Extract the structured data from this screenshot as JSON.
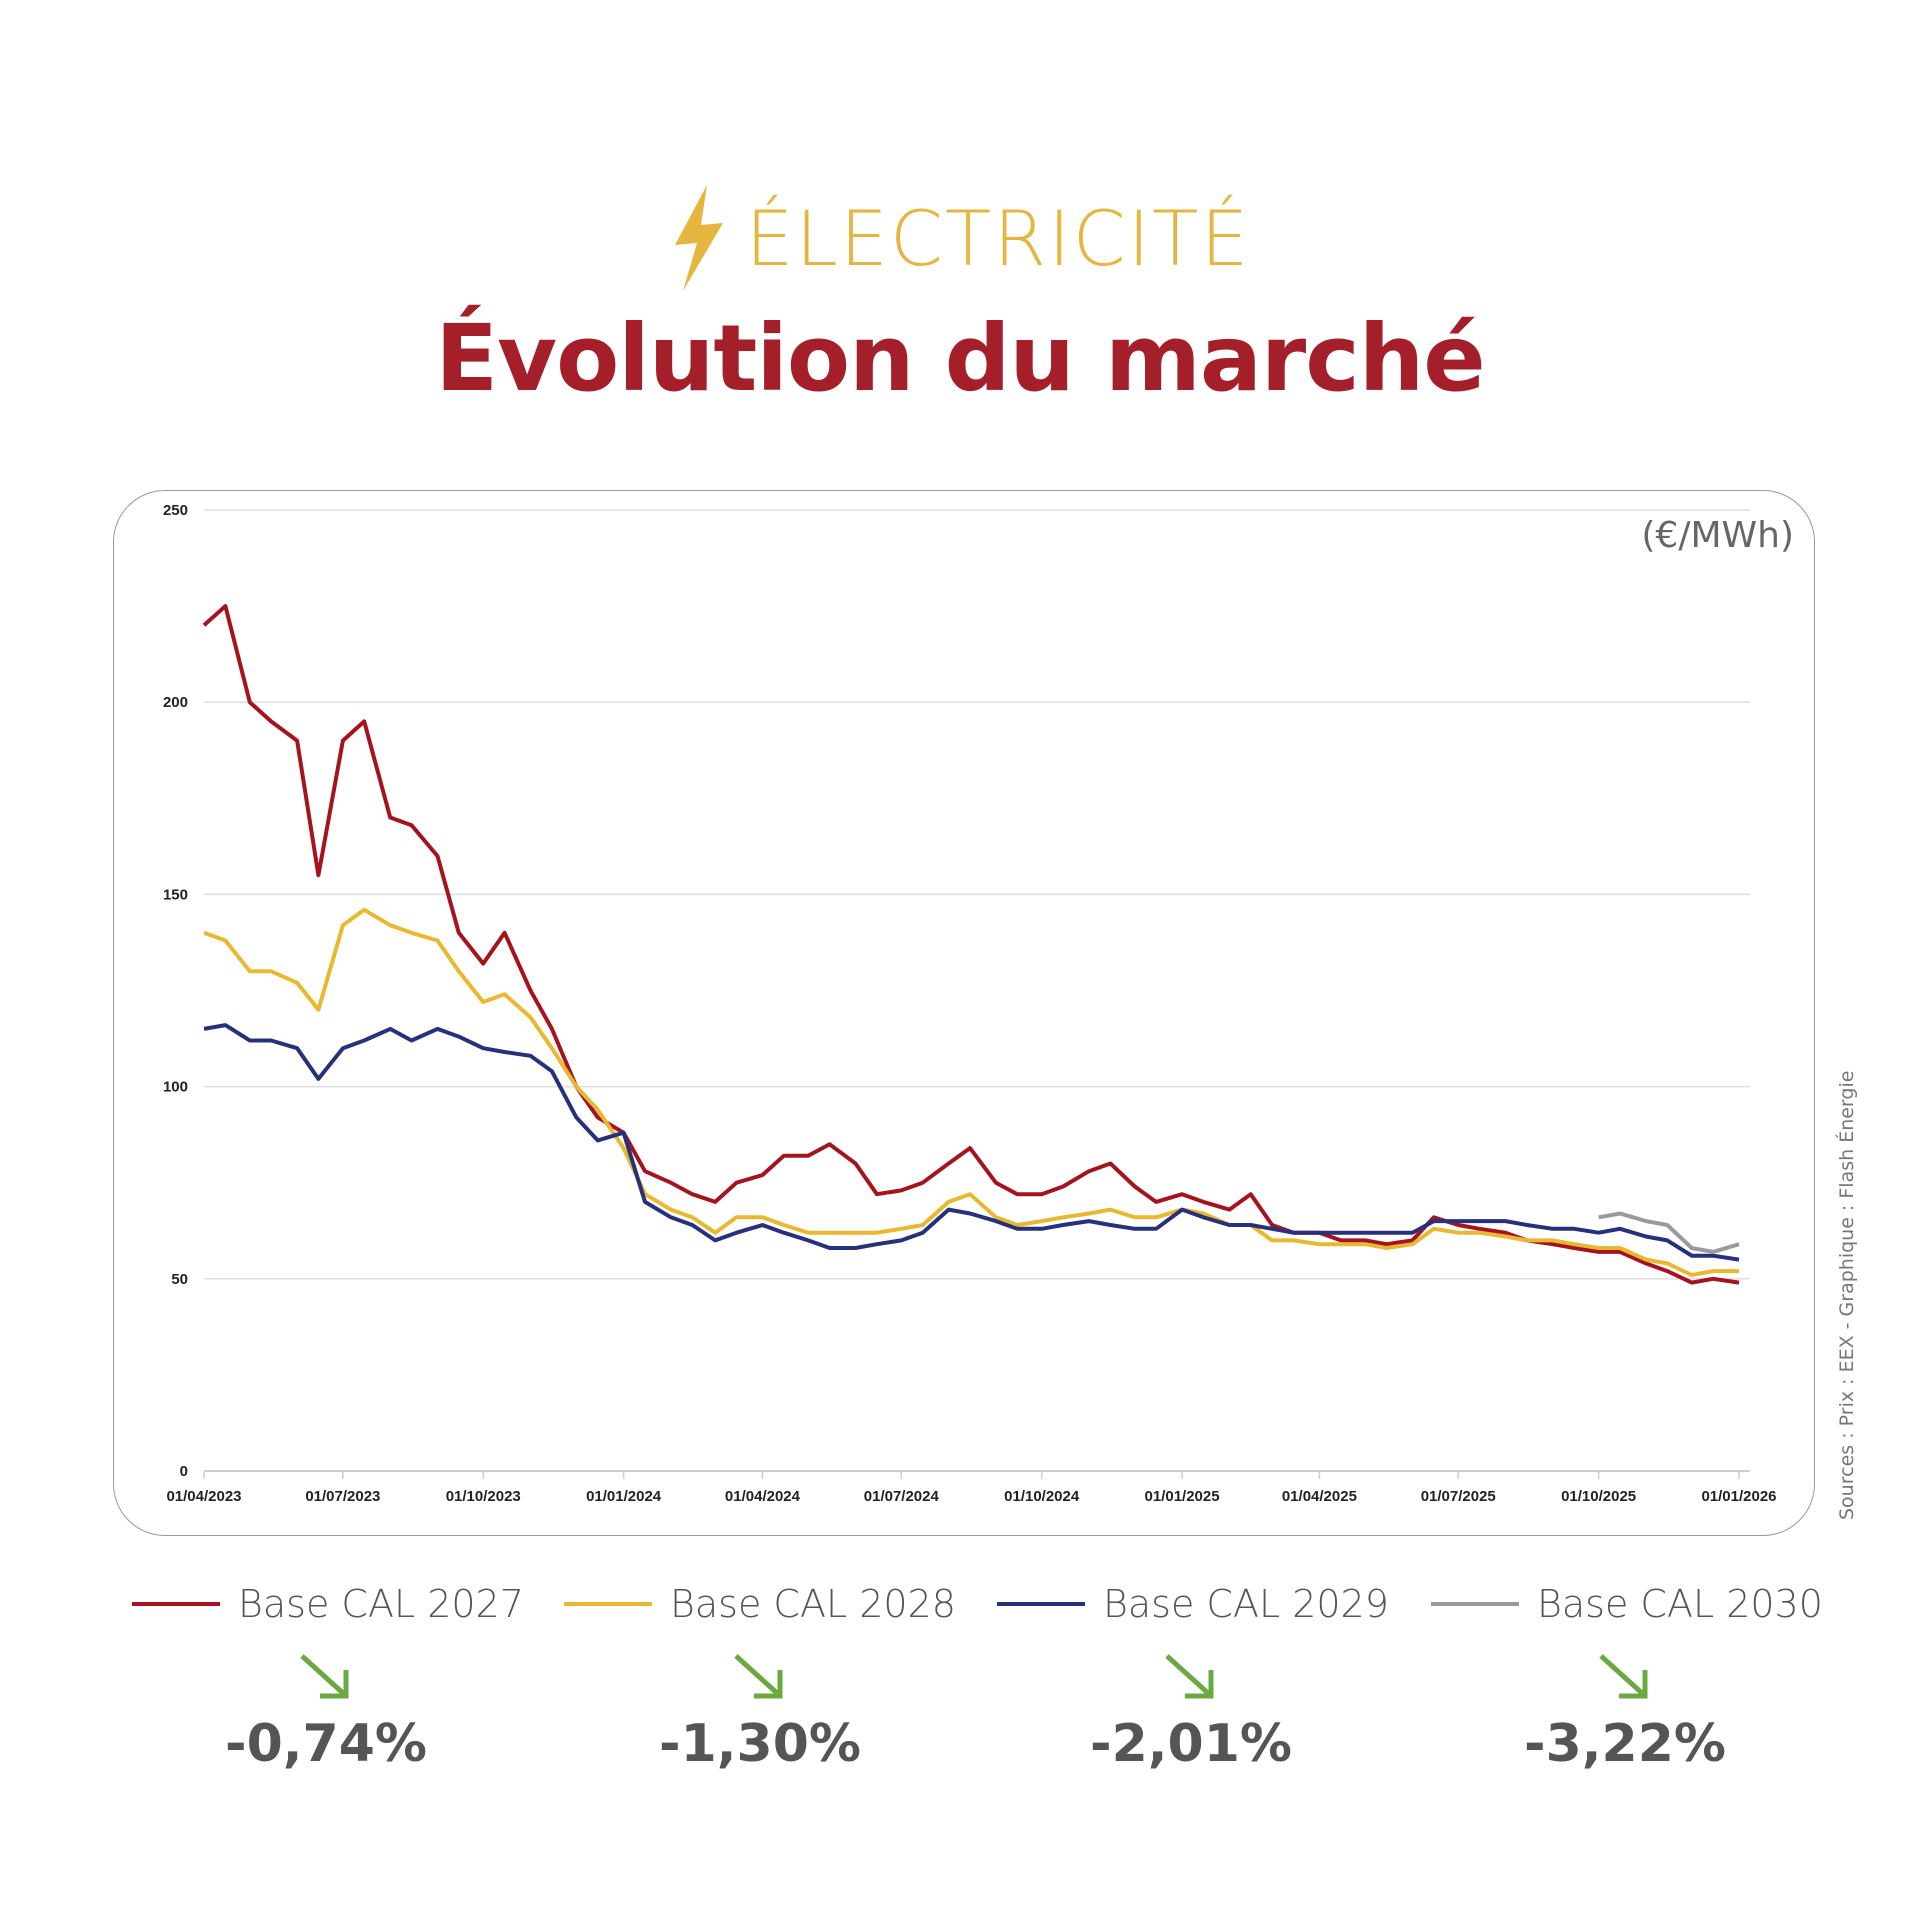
{
  "header": {
    "kicker": "ÉLECTRICITÉ",
    "kicker_icon": "lightning-bolt-icon",
    "title": "Évolution du marché"
  },
  "colors": {
    "accent_yellow": "#e6b53f",
    "title_red": "#a51f2b",
    "down_arrow_green": "#6aa842",
    "text_gray": "#555555"
  },
  "chart_data": {
    "type": "line",
    "unit_label": "(€/MWh)",
    "ylim": [
      0,
      250
    ],
    "yticks": [
      0,
      50,
      100,
      150,
      200,
      250
    ],
    "xlim": [
      "2023-04-01",
      "2026-01-01"
    ],
    "xtick_labels": [
      "01/04/2023",
      "01/07/2023",
      "01/10/2023",
      "01/01/2024",
      "01/04/2024",
      "01/07/2024",
      "01/10/2024",
      "01/01/2025",
      "01/04/2025",
      "01/07/2025",
      "01/10/2025",
      "01/01/2026"
    ],
    "grid": "horizontal",
    "legend_placement": "bottom",
    "x": [
      "2023-04-01",
      "2023-04-15",
      "2023-05-01",
      "2023-05-15",
      "2023-06-01",
      "2023-06-15",
      "2023-07-01",
      "2023-07-15",
      "2023-08-01",
      "2023-08-15",
      "2023-09-01",
      "2023-09-15",
      "2023-10-01",
      "2023-10-15",
      "2023-11-01",
      "2023-11-15",
      "2023-12-01",
      "2023-12-15",
      "2024-01-01",
      "2024-01-15",
      "2024-02-01",
      "2024-02-15",
      "2024-03-01",
      "2024-03-15",
      "2024-04-01",
      "2024-04-15",
      "2024-05-01",
      "2024-05-15",
      "2024-06-01",
      "2024-06-15",
      "2024-07-01",
      "2024-07-15",
      "2024-08-01",
      "2024-08-15",
      "2024-09-01",
      "2024-09-15",
      "2024-10-01",
      "2024-10-15",
      "2024-11-01",
      "2024-11-15",
      "2024-12-01",
      "2024-12-15",
      "2025-01-01",
      "2025-01-15",
      "2025-02-01",
      "2025-02-15",
      "2025-03-01",
      "2025-03-15",
      "2025-04-01",
      "2025-04-15",
      "2025-05-01",
      "2025-05-15",
      "2025-06-01",
      "2025-06-15",
      "2025-07-01",
      "2025-07-15",
      "2025-08-01",
      "2025-08-15",
      "2025-09-01",
      "2025-09-15",
      "2025-10-01",
      "2025-10-15",
      "2025-11-01",
      "2025-11-15",
      "2025-12-01",
      "2025-12-15",
      "2026-01-01"
    ],
    "series": [
      {
        "name": "Base CAL 2027",
        "color": "#a5141e",
        "values": [
          220,
          225,
          200,
          195,
          190,
          155,
          190,
          195,
          170,
          168,
          160,
          140,
          132,
          140,
          125,
          115,
          100,
          92,
          88,
          78,
          75,
          72,
          70,
          75,
          77,
          82,
          82,
          85,
          80,
          72,
          73,
          75,
          80,
          84,
          75,
          72,
          72,
          74,
          78,
          80,
          74,
          70,
          72,
          70,
          68,
          72,
          64,
          62,
          62,
          60,
          60,
          59,
          60,
          66,
          64,
          63,
          62,
          60,
          59,
          58,
          57,
          57,
          54,
          52,
          49,
          50,
          49
        ]
      },
      {
        "name": "Base CAL 2028",
        "color": "#e8b830",
        "values": [
          140,
          138,
          130,
          130,
          127,
          120,
          142,
          146,
          142,
          140,
          138,
          130,
          122,
          124,
          118,
          110,
          100,
          94,
          84,
          72,
          68,
          66,
          62,
          66,
          66,
          64,
          62,
          62,
          62,
          62,
          63,
          64,
          70,
          72,
          66,
          64,
          65,
          66,
          67,
          68,
          66,
          66,
          68,
          67,
          64,
          64,
          60,
          60,
          59,
          59,
          59,
          58,
          59,
          63,
          62,
          62,
          61,
          60,
          60,
          59,
          58,
          58,
          55,
          54,
          51,
          52,
          52
        ]
      },
      {
        "name": "Base CAL 2029",
        "color": "#27307a",
        "values": [
          115,
          116,
          112,
          112,
          110,
          102,
          110,
          112,
          115,
          112,
          115,
          113,
          110,
          109,
          108,
          104,
          92,
          86,
          88,
          70,
          66,
          64,
          60,
          62,
          64,
          62,
          60,
          58,
          58,
          59,
          60,
          62,
          68,
          67,
          65,
          63,
          63,
          64,
          65,
          64,
          63,
          63,
          68,
          66,
          64,
          64,
          63,
          62,
          62,
          62,
          62,
          62,
          62,
          65,
          65,
          65,
          65,
          64,
          63,
          63,
          62,
          63,
          61,
          60,
          56,
          56,
          55
        ]
      },
      {
        "name": "Base CAL 2030",
        "color": "#9a9a9a",
        "values": [
          null,
          null,
          null,
          null,
          null,
          null,
          null,
          null,
          null,
          null,
          null,
          null,
          null,
          null,
          null,
          null,
          null,
          null,
          null,
          null,
          null,
          null,
          null,
          null,
          null,
          null,
          null,
          null,
          null,
          null,
          null,
          null,
          null,
          null,
          null,
          null,
          null,
          null,
          null,
          null,
          null,
          null,
          null,
          null,
          null,
          null,
          null,
          null,
          null,
          null,
          null,
          null,
          null,
          null,
          null,
          null,
          null,
          null,
          null,
          null,
          66,
          67,
          65,
          64,
          58,
          57,
          59
        ]
      }
    ]
  },
  "sources": "Sources : Prix : EEX - Graphique : Flash Énergie",
  "legend": [
    {
      "label": "Base CAL 2027",
      "color": "#a5141e"
    },
    {
      "label": "Base CAL 2028",
      "color": "#e8b830"
    },
    {
      "label": "Base CAL 2029",
      "color": "#27307a"
    },
    {
      "label": "Base CAL 2030",
      "color": "#9a9a9a"
    }
  ],
  "changes": [
    {
      "value": "-0,74%",
      "icon": "arrow-down-right-icon"
    },
    {
      "value": "-1,30%",
      "icon": "arrow-down-right-icon"
    },
    {
      "value": "-2,01%",
      "icon": "arrow-down-right-icon"
    },
    {
      "value": "-3,22%",
      "icon": "arrow-down-right-icon"
    }
  ]
}
